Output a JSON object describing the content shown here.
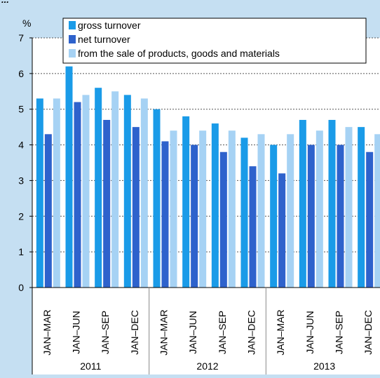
{
  "header_fragment": "...",
  "chart_data": {
    "type": "bar",
    "ylabel": "%",
    "ylim": [
      0,
      7
    ],
    "yticks": [
      0,
      1,
      2,
      3,
      4,
      5,
      6,
      7
    ],
    "grid": true,
    "legend_position": "top",
    "categories": [
      "JAN–MAR",
      "JAN–JUN",
      "JAN–SEP",
      "JAN–DEC",
      "JAN–MAR",
      "JAN–JUN",
      "JAN–SEP",
      "JAN–DEC",
      "JAN–MAR",
      "JAN–JUN",
      "JAN–SEP",
      "JAN–DEC"
    ],
    "groups": [
      {
        "label": "2011",
        "span": 4
      },
      {
        "label": "2012",
        "span": 4
      },
      {
        "label": "2013",
        "span": 4
      }
    ],
    "series": [
      {
        "name": "gross turnover",
        "color": "#1a9be8",
        "values": [
          5.3,
          6.2,
          5.6,
          5.4,
          5.0,
          4.8,
          4.6,
          4.2,
          4.0,
          4.7,
          4.7,
          4.5
        ]
      },
      {
        "name": "net turnover",
        "color": "#2e62cc",
        "values": [
          4.3,
          5.2,
          4.7,
          4.5,
          4.1,
          4.0,
          3.8,
          3.4,
          3.2,
          4.0,
          4.0,
          3.8
        ]
      },
      {
        "name": "from the sale of products, goods and materials",
        "color": "#a6d2f4",
        "values": [
          5.3,
          5.4,
          5.5,
          5.3,
          4.4,
          4.4,
          4.4,
          4.3,
          4.3,
          4.4,
          4.5,
          4.3
        ]
      }
    ]
  }
}
